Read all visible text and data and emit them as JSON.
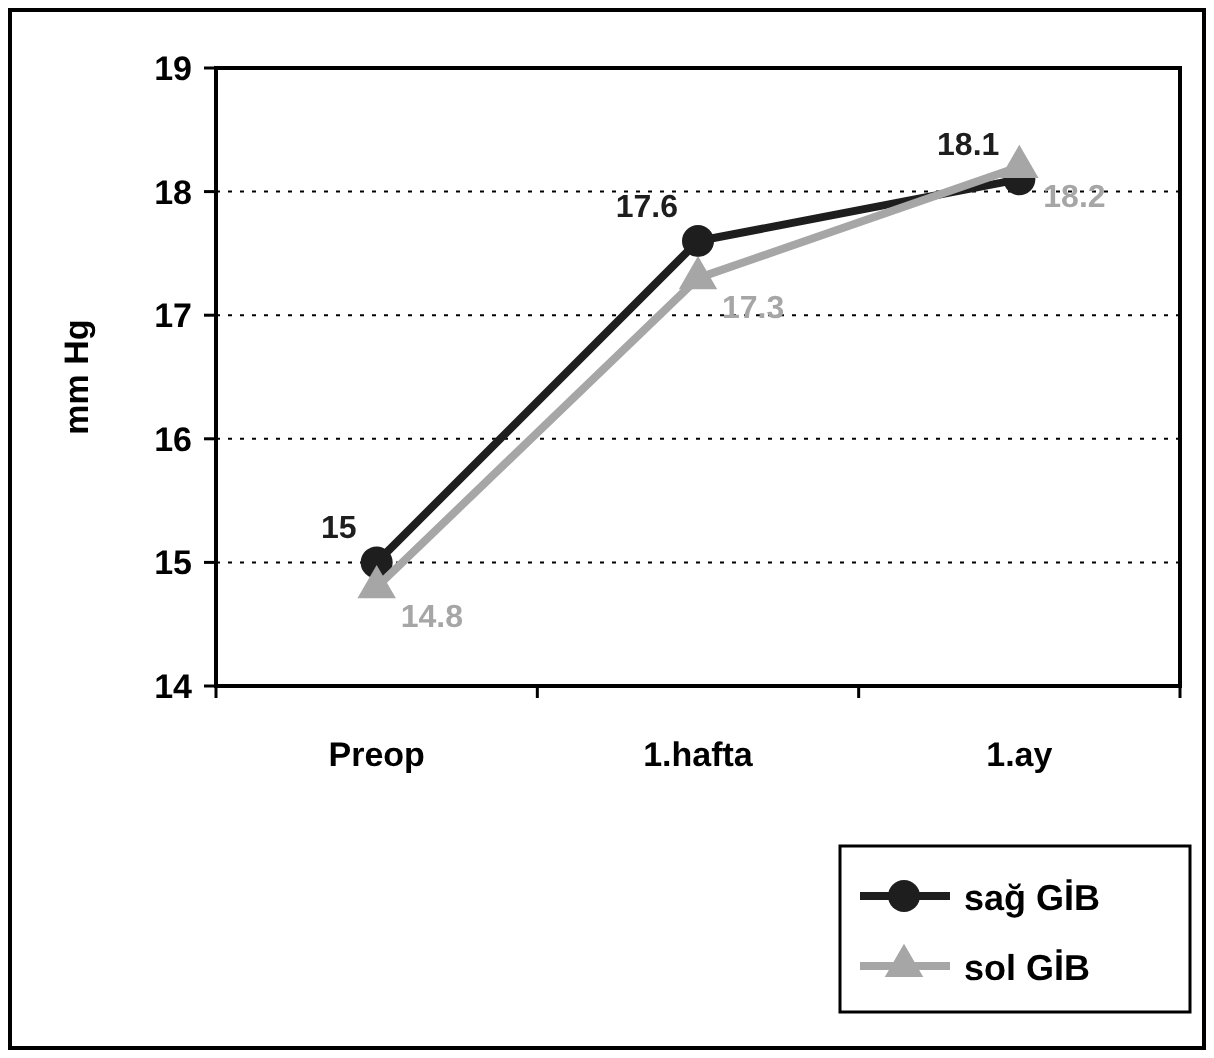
{
  "chart_data": {
    "type": "line",
    "ylabel": "mm Hg",
    "categories": [
      "Preop",
      "1.hafta",
      "1.ay"
    ],
    "series": [
      {
        "name": "sağ GİB",
        "color": "#1e1e1e",
        "marker": "circle",
        "values": [
          15,
          17.6,
          18.1
        ]
      },
      {
        "name": "sol GİB",
        "color": "#a6a6a6",
        "marker": "triangle",
        "values": [
          14.8,
          17.3,
          18.2
        ]
      }
    ],
    "ylim": [
      14,
      19
    ],
    "yticks": [
      14,
      15,
      16,
      17,
      18,
      19
    ],
    "grid": "y",
    "legend": "bottom right",
    "data_labels": true
  }
}
